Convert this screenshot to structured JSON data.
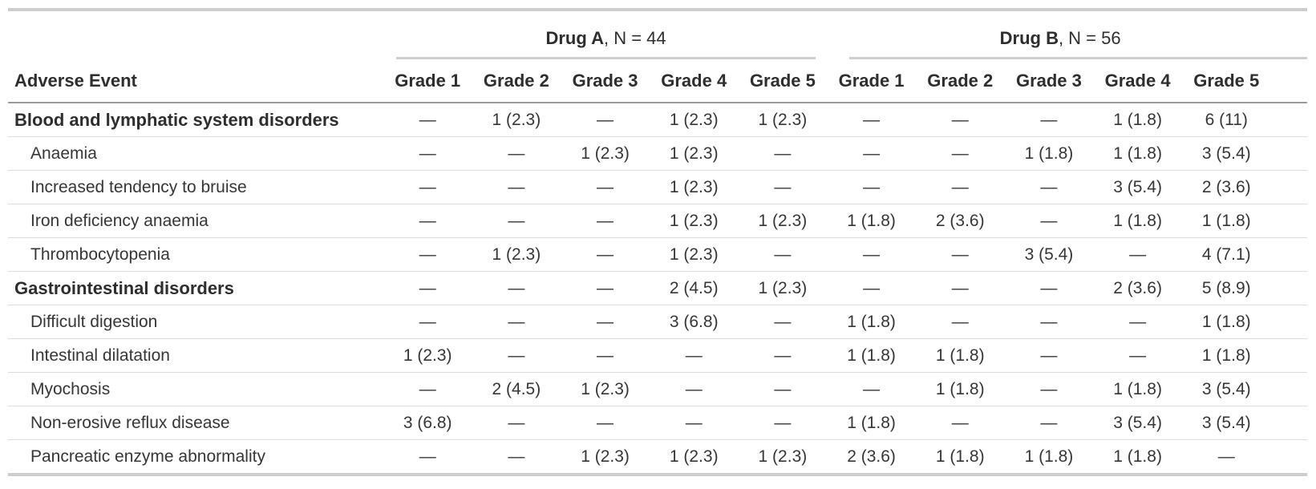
{
  "colors": {
    "background": "#ffffff",
    "body_text": "#363636",
    "header_text": "#2e2e2e",
    "outer_border": "#cdcdcd",
    "spanner_rule": "#cfcfcf",
    "header_rule": "#9a9a9a",
    "row_divider": "#dcdcdc"
  },
  "header": {
    "stub_label": "Adverse Event",
    "spanners": [
      {
        "name": "Drug A",
        "n_suffix": ", N = 44"
      },
      {
        "name": "Drug B",
        "n_suffix": ", N = 56"
      }
    ],
    "grade_labels": [
      "Grade 1",
      "Grade 2",
      "Grade 3",
      "Grade 4",
      "Grade 5"
    ]
  },
  "rows": [
    {
      "label": "Blood and lymphatic system disorders",
      "level": "group",
      "drug_a": [
        "—",
        "1 (2.3)",
        "—",
        "1 (2.3)",
        "1 (2.3)"
      ],
      "drug_b": [
        "—",
        "—",
        "—",
        "1 (1.8)",
        "6 (11)"
      ]
    },
    {
      "label": "Anaemia",
      "level": "item",
      "drug_a": [
        "—",
        "—",
        "1 (2.3)",
        "1 (2.3)",
        "—"
      ],
      "drug_b": [
        "—",
        "—",
        "1 (1.8)",
        "1 (1.8)",
        "3 (5.4)"
      ]
    },
    {
      "label": "Increased tendency to bruise",
      "level": "item",
      "drug_a": [
        "—",
        "—",
        "—",
        "1 (2.3)",
        "—"
      ],
      "drug_b": [
        "—",
        "—",
        "—",
        "3 (5.4)",
        "2 (3.6)"
      ]
    },
    {
      "label": "Iron deficiency anaemia",
      "level": "item",
      "drug_a": [
        "—",
        "—",
        "—",
        "1 (2.3)",
        "1 (2.3)"
      ],
      "drug_b": [
        "1 (1.8)",
        "2 (3.6)",
        "—",
        "1 (1.8)",
        "1 (1.8)"
      ]
    },
    {
      "label": "Thrombocytopenia",
      "level": "item",
      "drug_a": [
        "—",
        "1 (2.3)",
        "—",
        "1 (2.3)",
        "—"
      ],
      "drug_b": [
        "—",
        "—",
        "3 (5.4)",
        "—",
        "4 (7.1)"
      ]
    },
    {
      "label": "Gastrointestinal disorders",
      "level": "group",
      "drug_a": [
        "—",
        "—",
        "—",
        "2 (4.5)",
        "1 (2.3)"
      ],
      "drug_b": [
        "—",
        "—",
        "—",
        "2 (3.6)",
        "5 (8.9)"
      ]
    },
    {
      "label": "Difficult digestion",
      "level": "item",
      "drug_a": [
        "—",
        "—",
        "—",
        "3 (6.8)",
        "—"
      ],
      "drug_b": [
        "1 (1.8)",
        "—",
        "—",
        "—",
        "1 (1.8)"
      ]
    },
    {
      "label": "Intestinal dilatation",
      "level": "item",
      "drug_a": [
        "1 (2.3)",
        "—",
        "—",
        "—",
        "—"
      ],
      "drug_b": [
        "1 (1.8)",
        "1 (1.8)",
        "—",
        "—",
        "1 (1.8)"
      ]
    },
    {
      "label": "Myochosis",
      "level": "item",
      "drug_a": [
        "—",
        "2 (4.5)",
        "1 (2.3)",
        "—",
        "—"
      ],
      "drug_b": [
        "—",
        "1 (1.8)",
        "—",
        "1 (1.8)",
        "3 (5.4)"
      ]
    },
    {
      "label": "Non-erosive reflux disease",
      "level": "item",
      "drug_a": [
        "3 (6.8)",
        "—",
        "—",
        "—",
        "—"
      ],
      "drug_b": [
        "1 (1.8)",
        "—",
        "—",
        "3 (5.4)",
        "3 (5.4)"
      ]
    },
    {
      "label": "Pancreatic enzyme abnormality",
      "level": "item",
      "drug_a": [
        "—",
        "—",
        "1 (2.3)",
        "1 (2.3)",
        "1 (2.3)"
      ],
      "drug_b": [
        "2 (3.6)",
        "1 (1.8)",
        "1 (1.8)",
        "1 (1.8)",
        "—"
      ]
    }
  ]
}
